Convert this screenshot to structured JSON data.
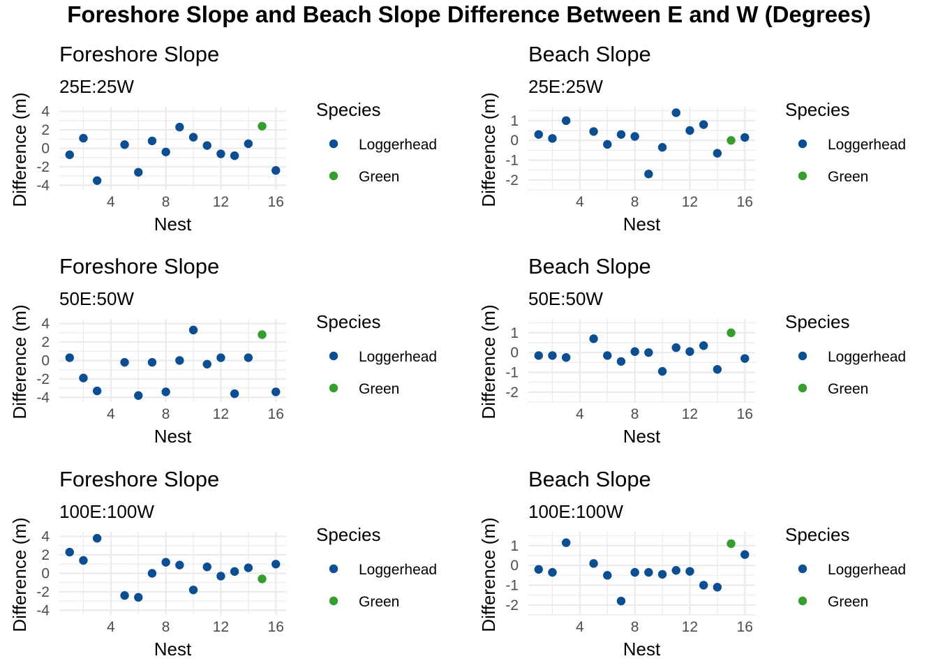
{
  "title": "Foreshore Slope and Beach Slope Difference Between E and W (Degrees)",
  "colors": {
    "Loggerhead": "#0a4f96",
    "Green": "#33a02c",
    "grid": "#ebebeb",
    "tick_text": "#4d4d4d"
  },
  "chart_data": [
    {
      "type": "scatter",
      "title": "Foreshore Slope",
      "subtitle": "25E:25W",
      "xlabel": "Nest",
      "ylabel": "Difference (m)",
      "xlim": [
        0.25,
        16.75
      ],
      "ylim": [
        -4.5,
        4.5
      ],
      "xticks": [
        4,
        8,
        12,
        16
      ],
      "yticks": [
        -4,
        -2,
        0,
        2,
        4
      ],
      "grid": true,
      "legend": {
        "title": "Species",
        "entries": [
          "Loggerhead",
          "Green"
        ],
        "position": "right"
      },
      "series": [
        {
          "name": "Loggerhead",
          "x": [
            1,
            2,
            3,
            5,
            6,
            7,
            8,
            9,
            10,
            11,
            12,
            13,
            14,
            16
          ],
          "y": [
            -0.7,
            1.1,
            -3.5,
            0.4,
            -2.6,
            0.8,
            -0.4,
            2.3,
            1.2,
            0.3,
            -0.6,
            -0.8,
            0.5,
            -2.4
          ]
        },
        {
          "name": "Green",
          "x": [
            15
          ],
          "y": [
            2.4
          ]
        }
      ]
    },
    {
      "type": "scatter",
      "title": "Beach Slope",
      "subtitle": "25E:25W",
      "xlabel": "Nest",
      "ylabel": "Difference (m)",
      "xlim": [
        0.25,
        16.75
      ],
      "ylim": [
        -2.5,
        1.7
      ],
      "xticks": [
        4,
        8,
        12,
        16
      ],
      "yticks": [
        -2,
        -1,
        0,
        1
      ],
      "grid": true,
      "legend": {
        "title": "Species",
        "entries": [
          "Loggerhead",
          "Green"
        ],
        "position": "right"
      },
      "series": [
        {
          "name": "Loggerhead",
          "x": [
            1,
            2,
            3,
            5,
            6,
            7,
            8,
            9,
            10,
            11,
            12,
            13,
            14,
            16
          ],
          "y": [
            0.3,
            0.1,
            1.0,
            0.45,
            -0.2,
            0.3,
            0.2,
            -1.7,
            -0.35,
            1.4,
            0.5,
            0.8,
            -0.65,
            0.15
          ]
        },
        {
          "name": "Green",
          "x": [
            15
          ],
          "y": [
            0.0
          ]
        }
      ]
    },
    {
      "type": "scatter",
      "title": "Foreshore Slope",
      "subtitle": "50E:50W",
      "xlabel": "Nest",
      "ylabel": "Difference (m)",
      "xlim": [
        0.25,
        16.75
      ],
      "ylim": [
        -4.5,
        4.5
      ],
      "xticks": [
        4,
        8,
        12,
        16
      ],
      "yticks": [
        -4,
        -2,
        0,
        2,
        4
      ],
      "grid": true,
      "legend": {
        "title": "Species",
        "entries": [
          "Loggerhead",
          "Green"
        ],
        "position": "right"
      },
      "series": [
        {
          "name": "Loggerhead",
          "x": [
            1,
            2,
            3,
            5,
            6,
            7,
            8,
            9,
            10,
            11,
            12,
            13,
            14,
            16
          ],
          "y": [
            0.3,
            -1.9,
            -3.3,
            -0.2,
            -3.8,
            -0.2,
            -3.4,
            0.0,
            3.3,
            -0.4,
            0.3,
            -3.6,
            0.3,
            -3.4
          ]
        },
        {
          "name": "Green",
          "x": [
            15
          ],
          "y": [
            2.8
          ]
        }
      ]
    },
    {
      "type": "scatter",
      "title": "Beach Slope",
      "subtitle": "50E:50W",
      "xlabel": "Nest",
      "ylabel": "Difference (m)",
      "xlim": [
        0.25,
        16.75
      ],
      "ylim": [
        -2.5,
        1.7
      ],
      "xticks": [
        4,
        8,
        12,
        16
      ],
      "yticks": [
        -2,
        -1,
        0,
        1
      ],
      "grid": true,
      "legend": {
        "title": "Species",
        "entries": [
          "Loggerhead",
          "Green"
        ],
        "position": "right"
      },
      "series": [
        {
          "name": "Loggerhead",
          "x": [
            1,
            2,
            3,
            5,
            6,
            7,
            8,
            9,
            10,
            11,
            12,
            13,
            14,
            16
          ],
          "y": [
            -0.15,
            -0.15,
            -0.25,
            0.7,
            -0.15,
            -0.45,
            0.05,
            0.0,
            -0.95,
            0.25,
            0.05,
            0.35,
            -0.85,
            -0.3
          ]
        },
        {
          "name": "Green",
          "x": [
            15
          ],
          "y": [
            1.0
          ]
        }
      ]
    },
    {
      "type": "scatter",
      "title": "Foreshore Slope",
      "subtitle": "100E:100W",
      "xlabel": "Nest",
      "ylabel": "Difference (m)",
      "xlim": [
        0.25,
        16.75
      ],
      "ylim": [
        -4.5,
        4.5
      ],
      "xticks": [
        4,
        8,
        12,
        16
      ],
      "yticks": [
        -4,
        -2,
        0,
        2,
        4
      ],
      "grid": true,
      "legend": {
        "title": "Species",
        "entries": [
          "Loggerhead",
          "Green"
        ],
        "position": "right"
      },
      "series": [
        {
          "name": "Loggerhead",
          "x": [
            1,
            2,
            3,
            5,
            6,
            7,
            8,
            9,
            10,
            11,
            12,
            13,
            14,
            16
          ],
          "y": [
            2.3,
            1.4,
            3.8,
            -2.4,
            -2.6,
            0.0,
            1.2,
            0.9,
            -1.8,
            0.7,
            -0.3,
            0.2,
            0.6,
            1.0
          ]
        },
        {
          "name": "Green",
          "x": [
            15
          ],
          "y": [
            -0.6
          ]
        }
      ]
    },
    {
      "type": "scatter",
      "title": "Beach Slope",
      "subtitle": "100E:100W",
      "xlabel": "Nest",
      "ylabel": "Difference (m)",
      "xlim": [
        0.25,
        16.75
      ],
      "ylim": [
        -2.5,
        1.7
      ],
      "xticks": [
        4,
        8,
        12,
        16
      ],
      "yticks": [
        -2,
        -1,
        0,
        1
      ],
      "grid": true,
      "legend": {
        "title": "Species",
        "entries": [
          "Loggerhead",
          "Green"
        ],
        "position": "right"
      },
      "series": [
        {
          "name": "Loggerhead",
          "x": [
            1,
            2,
            3,
            5,
            6,
            7,
            8,
            9,
            10,
            11,
            12,
            13,
            14,
            16
          ],
          "y": [
            -0.2,
            -0.35,
            1.15,
            0.1,
            -0.5,
            -1.8,
            -0.35,
            -0.35,
            -0.45,
            -0.25,
            -0.3,
            -1.0,
            -1.1,
            0.55
          ]
        },
        {
          "name": "Green",
          "x": [
            15
          ],
          "y": [
            1.1
          ]
        }
      ]
    }
  ]
}
